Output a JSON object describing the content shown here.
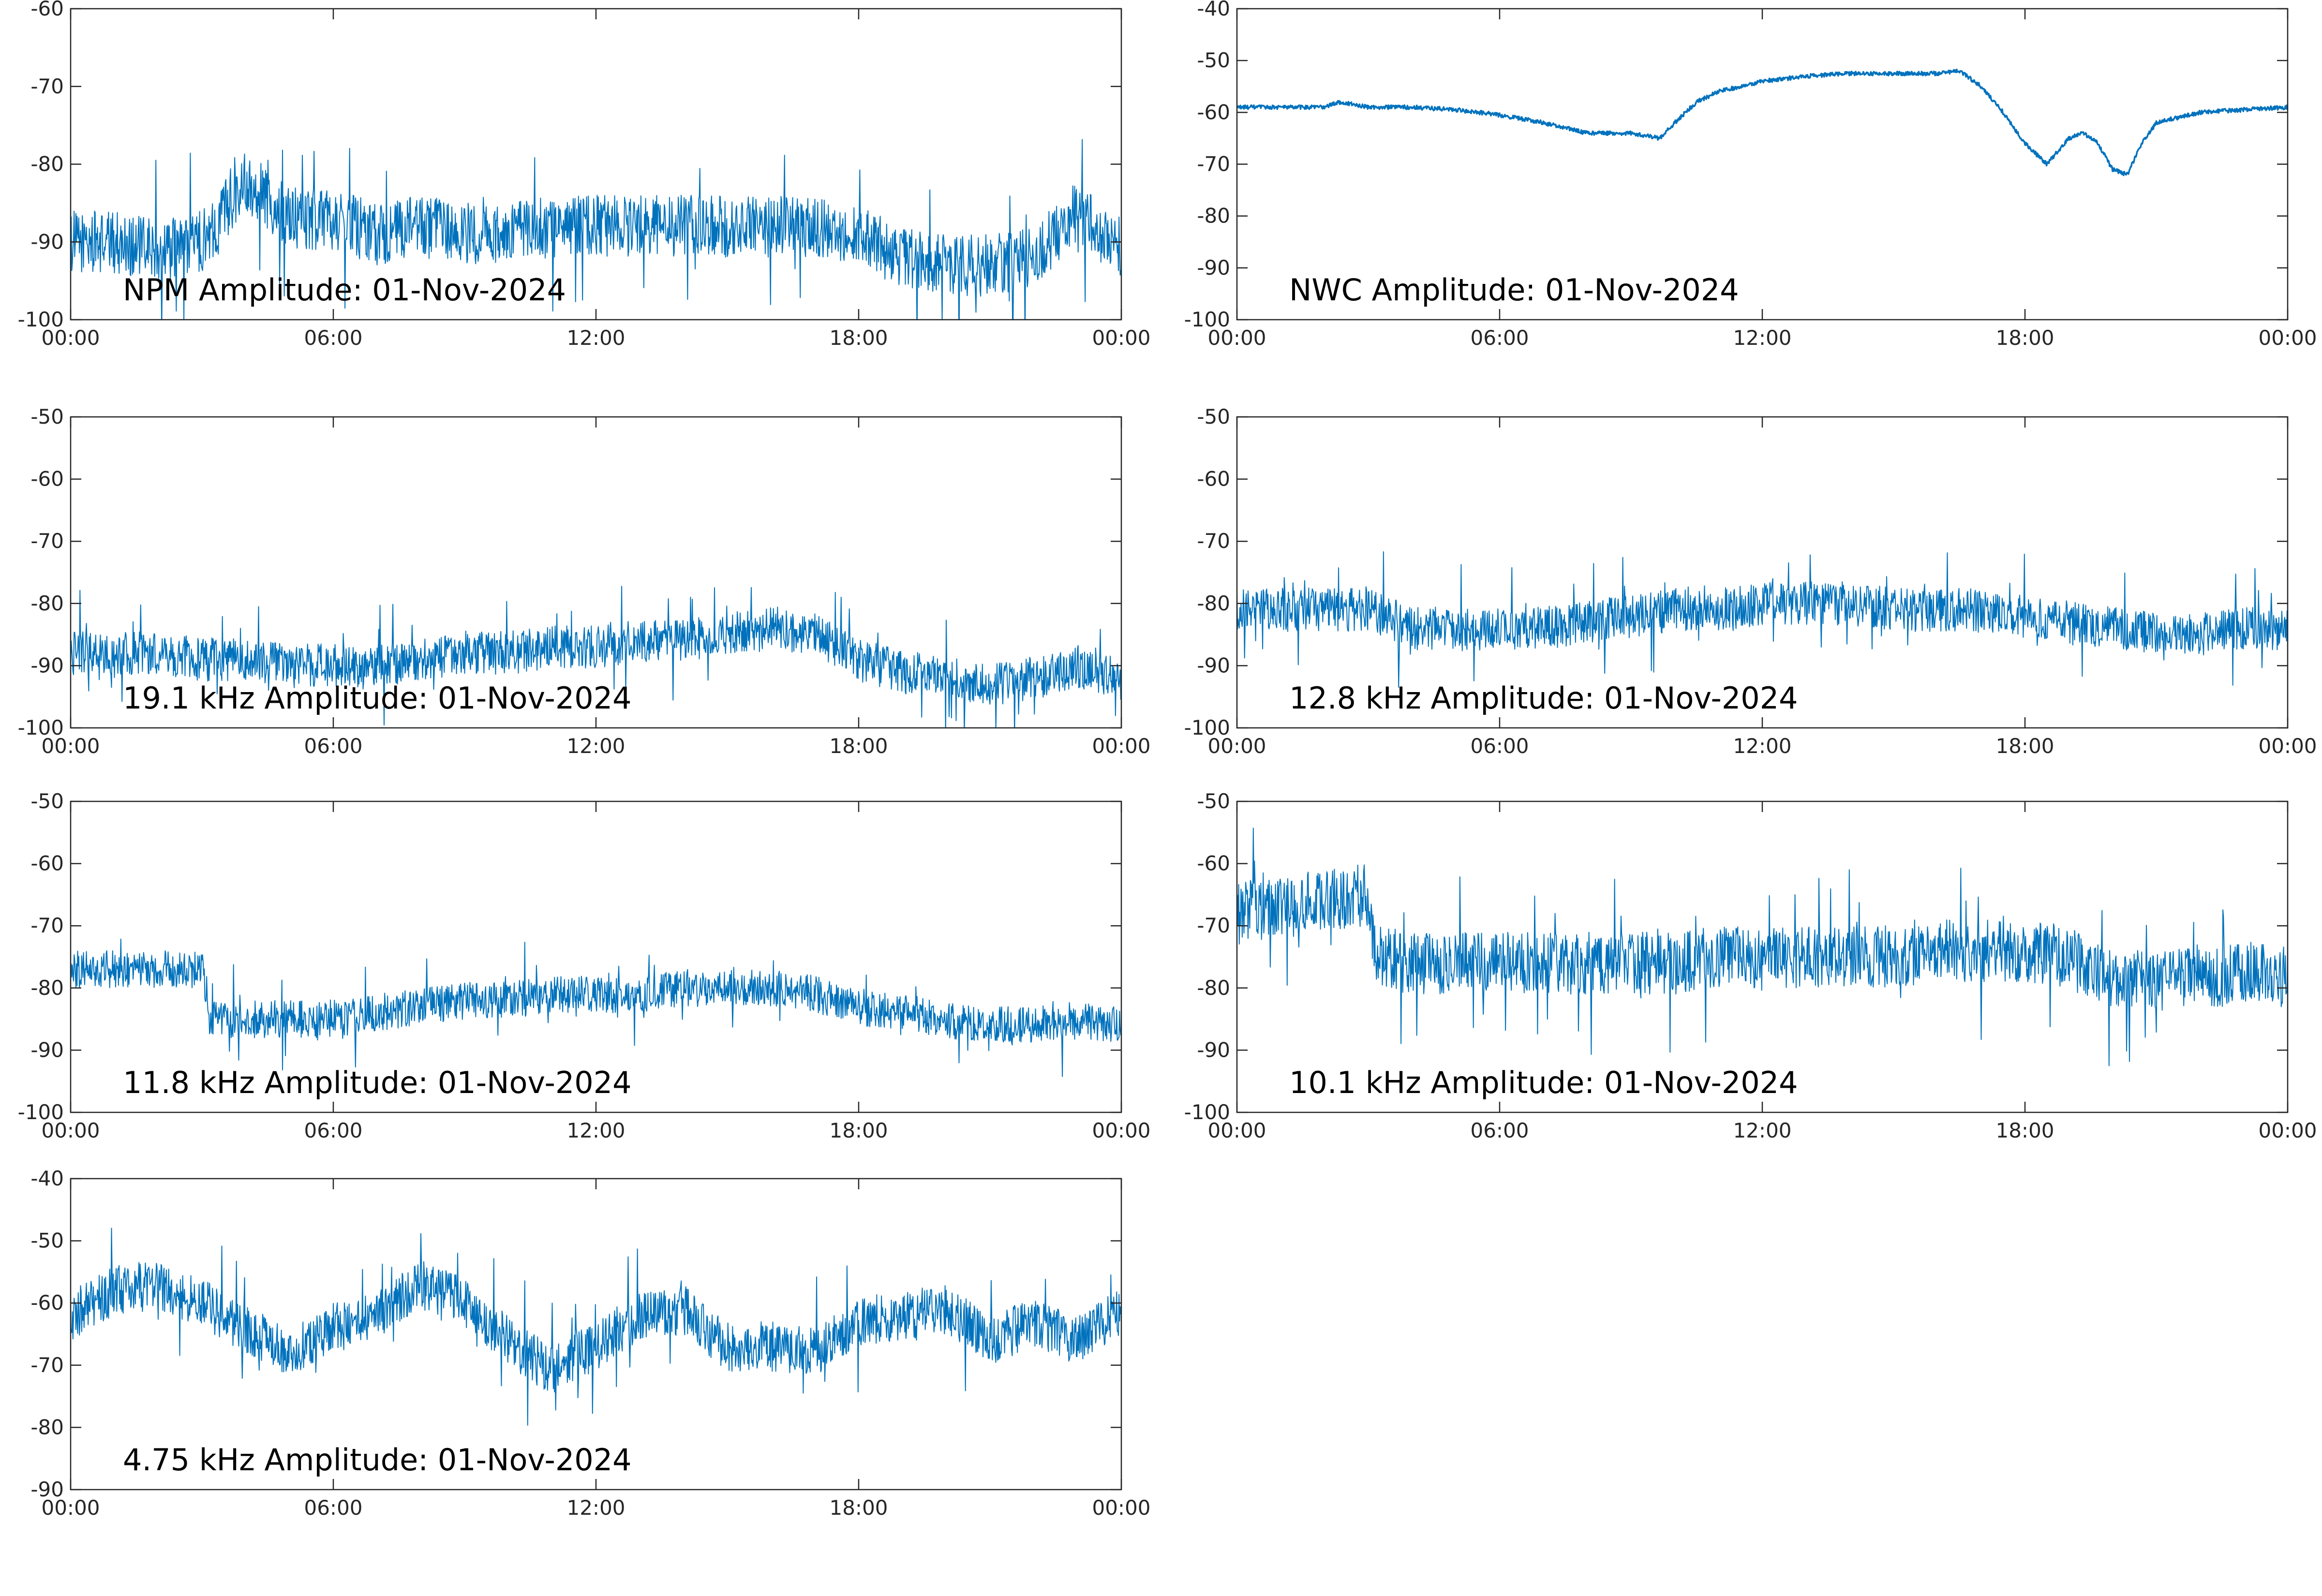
{
  "figure": {
    "background": "#ffffff",
    "series_color": "#0072BD"
  },
  "chart_data": [
    {
      "type": "line",
      "title": "NPM Amplitude: 01-Nov-2024",
      "xlabel": "",
      "ylabel": "",
      "x_ticks": [
        "00:00",
        "06:00",
        "12:00",
        "18:00",
        "00:00"
      ],
      "x": [
        "00:00",
        "01:00",
        "02:00",
        "03:00",
        "04:00",
        "05:00",
        "06:00",
        "07:00",
        "08:00",
        "09:00",
        "10:00",
        "11:00",
        "12:00",
        "13:00",
        "14:00",
        "15:00",
        "16:00",
        "17:00",
        "18:00",
        "19:00",
        "20:00",
        "21:00",
        "22:00",
        "23:00",
        "00:00"
      ],
      "y": [
        -90,
        -90,
        -91,
        -90,
        -82,
        -87,
        -87,
        -89,
        -88,
        -89,
        -89,
        -88,
        -88,
        -88,
        -88,
        -88,
        -88,
        -88,
        -89,
        -92,
        -93,
        -93,
        -92,
        -86,
        -91
      ],
      "noise_db": 4,
      "ylim": [
        -100,
        -60
      ],
      "y_ticks": [
        -60,
        -70,
        -80,
        -90,
        -100
      ],
      "grid": false,
      "legend": "none"
    },
    {
      "type": "line",
      "title": "NWC Amplitude: 01-Nov-2024",
      "xlabel": "",
      "ylabel": "",
      "x_ticks": [
        "00:00",
        "06:00",
        "12:00",
        "18:00",
        "00:00"
      ],
      "x": [
        "00:00",
        "01:00",
        "02:00",
        "02:20",
        "03:00",
        "04:00",
        "05:00",
        "06:00",
        "07:00",
        "08:00",
        "09:00",
        "09:40",
        "10:00",
        "10:30",
        "11:00",
        "12:00",
        "13:00",
        "14:00",
        "15:00",
        "16:00",
        "16:30",
        "17:00",
        "17:30",
        "18:00",
        "18:30",
        "19:00",
        "19:20",
        "19:40",
        "20:00",
        "20:20",
        "20:40",
        "21:00",
        "21:30",
        "22:00",
        "23:00",
        "00:00"
      ],
      "y": [
        -59,
        -59,
        -59,
        -58,
        -59,
        -59,
        -59.5,
        -60.5,
        -62,
        -64,
        -64,
        -65,
        -62,
        -58,
        -56,
        -54,
        -53,
        -52.5,
        -52.5,
        -52.5,
        -52,
        -55,
        -60,
        -66,
        -70,
        -65,
        -64,
        -66,
        -71,
        -72,
        -66,
        -62,
        -61,
        -60,
        -59.5,
        -59
      ],
      "noise_db": 0.4,
      "ylim": [
        -100,
        -40
      ],
      "y_ticks": [
        -40,
        -50,
        -60,
        -70,
        -80,
        -90,
        -100
      ],
      "grid": false,
      "legend": "none"
    },
    {
      "type": "line",
      "title": "19.1 kHz Amplitude: 01-Nov-2024",
      "xlabel": "",
      "ylabel": "",
      "x_ticks": [
        "00:00",
        "06:00",
        "12:00",
        "18:00",
        "00:00"
      ],
      "x": [
        "00:00",
        "01:00",
        "02:00",
        "03:00",
        "04:00",
        "05:00",
        "06:00",
        "07:00",
        "08:00",
        "09:00",
        "10:00",
        "11:00",
        "12:00",
        "13:00",
        "14:00",
        "15:00",
        "16:00",
        "17:00",
        "18:00",
        "19:00",
        "20:00",
        "21:00",
        "22:00",
        "23:00",
        "00:00"
      ],
      "y": [
        -88,
        -88,
        -88,
        -89,
        -89,
        -90,
        -90,
        -90,
        -89,
        -88,
        -88,
        -87,
        -87,
        -86,
        -86,
        -85,
        -84,
        -85,
        -89,
        -91,
        -92,
        -93,
        -92,
        -90,
        -92
      ],
      "noise_db": 3.5,
      "ylim": [
        -100,
        -50
      ],
      "y_ticks": [
        -50,
        -60,
        -70,
        -80,
        -90,
        -100
      ],
      "grid": false,
      "legend": "none"
    },
    {
      "type": "line",
      "title": "12.8 kHz Amplitude: 01-Nov-2024",
      "xlabel": "",
      "ylabel": "",
      "x_ticks": [
        "00:00",
        "06:00",
        "12:00",
        "18:00",
        "00:00"
      ],
      "x": [
        "00:00",
        "01:00",
        "02:00",
        "03:00",
        "04:00",
        "05:00",
        "06:00",
        "07:00",
        "08:00",
        "09:00",
        "10:00",
        "11:00",
        "12:00",
        "13:00",
        "14:00",
        "15:00",
        "16:00",
        "17:00",
        "18:00",
        "19:00",
        "20:00",
        "21:00",
        "22:00",
        "23:00",
        "00:00"
      ],
      "y": [
        -81,
        -81,
        -81,
        -81,
        -84,
        -84,
        -84,
        -84,
        -83,
        -82,
        -81,
        -81,
        -80,
        -80,
        -80,
        -81,
        -81,
        -81,
        -82,
        -83,
        -84,
        -85,
        -85,
        -84,
        -84
      ],
      "noise_db": 3.5,
      "ylim": [
        -100,
        -50
      ],
      "y_ticks": [
        -50,
        -60,
        -70,
        -80,
        -90,
        -100
      ],
      "grid": false,
      "legend": "none"
    },
    {
      "type": "line",
      "title": "11.8 kHz Amplitude: 01-Nov-2024",
      "xlabel": "",
      "ylabel": "",
      "x_ticks": [
        "00:00",
        "06:00",
        "12:00",
        "18:00",
        "00:00"
      ],
      "x": [
        "00:00",
        "01:00",
        "02:00",
        "03:00",
        "03:10",
        "04:00",
        "05:00",
        "06:00",
        "07:00",
        "08:00",
        "09:00",
        "10:00",
        "11:00",
        "12:00",
        "13:00",
        "14:00",
        "15:00",
        "16:00",
        "17:00",
        "18:00",
        "19:00",
        "20:00",
        "21:00",
        "22:00",
        "23:00",
        "00:00"
      ],
      "y": [
        -77,
        -77,
        -77,
        -77,
        -85,
        -85,
        -85,
        -85,
        -84,
        -83,
        -82,
        -82,
        -81,
        -81,
        -81,
        -80,
        -80,
        -80,
        -81,
        -83,
        -84,
        -85,
        -86,
        -86,
        -85,
        -86
      ],
      "noise_db": 3,
      "ylim": [
        -100,
        -50
      ],
      "y_ticks": [
        -50,
        -60,
        -70,
        -80,
        -90,
        -100
      ],
      "grid": false,
      "legend": "none"
    },
    {
      "type": "line",
      "title": "10.1 kHz Amplitude: 01-Nov-2024",
      "xlabel": "",
      "ylabel": "",
      "x_ticks": [
        "00:00",
        "06:00",
        "12:00",
        "18:00",
        "00:00"
      ],
      "x": [
        "00:00",
        "01:00",
        "02:00",
        "03:00",
        "03:10",
        "04:00",
        "05:00",
        "06:00",
        "07:00",
        "08:00",
        "09:00",
        "10:00",
        "11:00",
        "12:00",
        "13:00",
        "14:00",
        "15:00",
        "16:00",
        "17:00",
        "18:00",
        "19:00",
        "20:00",
        "21:00",
        "22:00",
        "23:00",
        "00:00"
      ],
      "y": [
        -68,
        -67,
        -66,
        -65,
        -75,
        -76,
        -76,
        -76,
        -76,
        -76,
        -76,
        -76,
        -75,
        -75,
        -75,
        -75,
        -75,
        -74,
        -74,
        -74,
        -75,
        -79,
        -79,
        -78,
        -78,
        -78
      ],
      "noise_db": 5,
      "ylim": [
        -100,
        -50
      ],
      "y_ticks": [
        -50,
        -60,
        -70,
        -80,
        -90,
        -100
      ],
      "grid": false,
      "legend": "none"
    },
    {
      "type": "line",
      "title": "4.75 kHz Amplitude: 01-Nov-2024",
      "xlabel": "",
      "ylabel": "",
      "x_ticks": [
        "00:00",
        "06:00",
        "12:00",
        "18:00",
        "00:00"
      ],
      "x": [
        "00:00",
        "01:00",
        "02:00",
        "03:00",
        "04:00",
        "05:00",
        "06:00",
        "07:00",
        "08:00",
        "09:00",
        "10:00",
        "11:00",
        "12:00",
        "13:00",
        "14:00",
        "15:00",
        "16:00",
        "17:00",
        "18:00",
        "19:00",
        "20:00",
        "21:00",
        "22:00",
        "23:00",
        "00:00"
      ],
      "y": [
        -62,
        -58,
        -57,
        -60,
        -64,
        -68,
        -64,
        -62,
        -57,
        -60,
        -66,
        -71,
        -67,
        -62,
        -61,
        -67,
        -67,
        -68,
        -63,
        -62,
        -61,
        -66,
        -63,
        -66,
        -61
      ],
      "noise_db": 4,
      "ylim": [
        -90,
        -40
      ],
      "y_ticks": [
        -40,
        -50,
        -60,
        -70,
        -80,
        -90
      ],
      "grid": false,
      "legend": "none"
    }
  ]
}
